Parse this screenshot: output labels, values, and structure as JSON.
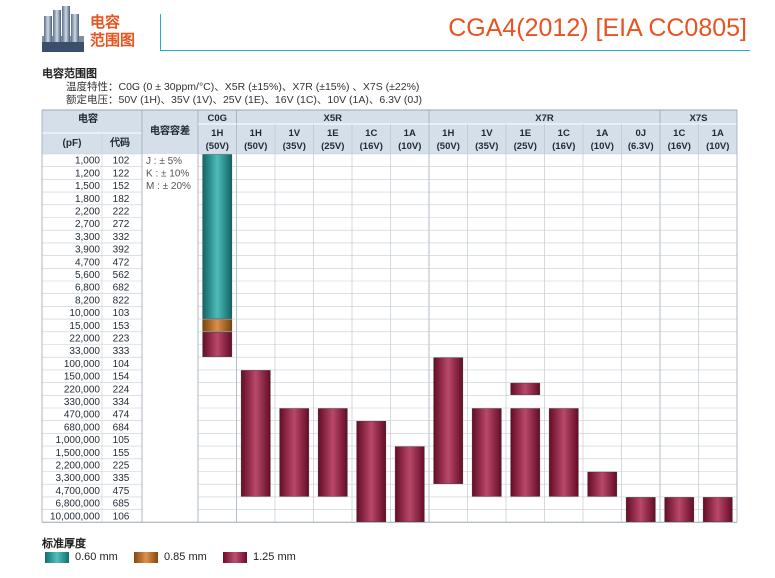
{
  "header": {
    "category_line1": "电容",
    "category_line2": "范围图",
    "main_title": "CGA4(2012) [EIA CC0805]"
  },
  "section": {
    "title": "电容范围图",
    "spec_temp": "温度特性：C0G (0 ± 30ppm/°C)、X5R (±15%)、X7R (±15%) 、X7S (±22%)",
    "spec_voltage": "额定电压：50V (1H)、35V (1V)、25V (1E)、16V (1C)、10V (1A)、6.3V (0J)"
  },
  "table": {
    "cap_header": "电容",
    "unit_header": "(pF)",
    "code_header": "代码",
    "tol_header": "电容容差",
    "tolerances": [
      "J : ± 5%",
      "K : ± 10%",
      "M : ± 20%"
    ],
    "groups": [
      {
        "name": "C0G",
        "span": 1
      },
      {
        "name": "X5R",
        "span": 5
      },
      {
        "name": "X7R",
        "span": 6
      },
      {
        "name": "X7S",
        "span": 2
      }
    ],
    "columns": [
      {
        "code": "1H",
        "voltage": "(50V)"
      },
      {
        "code": "1H",
        "voltage": "(50V)"
      },
      {
        "code": "1V",
        "voltage": "(35V)"
      },
      {
        "code": "1E",
        "voltage": "(25V)"
      },
      {
        "code": "1C",
        "voltage": "(16V)"
      },
      {
        "code": "1A",
        "voltage": "(10V)"
      },
      {
        "code": "1H",
        "voltage": "(50V)"
      },
      {
        "code": "1V",
        "voltage": "(35V)"
      },
      {
        "code": "1E",
        "voltage": "(25V)"
      },
      {
        "code": "1C",
        "voltage": "(16V)"
      },
      {
        "code": "1A",
        "voltage": "(10V)"
      },
      {
        "code": "0J",
        "voltage": "(6.3V)"
      },
      {
        "code": "1C",
        "voltage": "(16V)"
      },
      {
        "code": "1A",
        "voltage": "(10V)"
      }
    ],
    "rows": [
      {
        "value": "1,000",
        "code": "102"
      },
      {
        "value": "1,200",
        "code": "122"
      },
      {
        "value": "1,500",
        "code": "152"
      },
      {
        "value": "1,800",
        "code": "182"
      },
      {
        "value": "2,200",
        "code": "222"
      },
      {
        "value": "2,700",
        "code": "272"
      },
      {
        "value": "3,300",
        "code": "332"
      },
      {
        "value": "3,900",
        "code": "392"
      },
      {
        "value": "4,700",
        "code": "472"
      },
      {
        "value": "5,600",
        "code": "562"
      },
      {
        "value": "6,800",
        "code": "682"
      },
      {
        "value": "8,200",
        "code": "822"
      },
      {
        "value": "10,000",
        "code": "103"
      },
      {
        "value": "15,000",
        "code": "153"
      },
      {
        "value": "22,000",
        "code": "223"
      },
      {
        "value": "33,000",
        "code": "333"
      },
      {
        "value": "100,000",
        "code": "104"
      },
      {
        "value": "150,000",
        "code": "154"
      },
      {
        "value": "220,000",
        "code": "224"
      },
      {
        "value": "330,000",
        "code": "334"
      },
      {
        "value": "470,000",
        "code": "474"
      },
      {
        "value": "680,000",
        "code": "684"
      },
      {
        "value": "1,000,000",
        "code": "105"
      },
      {
        "value": "1,500,000",
        "code": "155"
      },
      {
        "value": "2,200,000",
        "code": "225"
      },
      {
        "value": "3,300,000",
        "code": "335"
      },
      {
        "value": "4,700,000",
        "code": "475"
      },
      {
        "value": "6,800,000",
        "code": "685"
      },
      {
        "value": "10,000,000",
        "code": "106"
      }
    ],
    "bars": [
      {
        "col": 0,
        "from": 0,
        "to": 12,
        "thickness": "0.60 mm"
      },
      {
        "col": 0,
        "from": 13,
        "to": 13,
        "thickness": "0.85 mm"
      },
      {
        "col": 0,
        "from": 14,
        "to": 15,
        "thickness": "1.25 mm"
      },
      {
        "col": 1,
        "from": 17,
        "to": 26,
        "thickness": "1.25 mm"
      },
      {
        "col": 2,
        "from": 20,
        "to": 26,
        "thickness": "1.25 mm"
      },
      {
        "col": 3,
        "from": 20,
        "to": 26,
        "thickness": "1.25 mm"
      },
      {
        "col": 4,
        "from": 21,
        "to": 28,
        "thickness": "1.25 mm"
      },
      {
        "col": 5,
        "from": 23,
        "to": 28,
        "thickness": "1.25 mm"
      },
      {
        "col": 6,
        "from": 16,
        "to": 25,
        "thickness": "1.25 mm"
      },
      {
        "col": 7,
        "from": 20,
        "to": 26,
        "thickness": "1.25 mm"
      },
      {
        "col": 8,
        "from": 18,
        "to": 18,
        "thickness": "1.25 mm"
      },
      {
        "col": 8,
        "from": 20,
        "to": 26,
        "thickness": "1.25 mm"
      },
      {
        "col": 9,
        "from": 20,
        "to": 26,
        "thickness": "1.25 mm"
      },
      {
        "col": 10,
        "from": 25,
        "to": 26,
        "thickness": "1.25 mm"
      },
      {
        "col": 11,
        "from": 27,
        "to": 28,
        "thickness": "1.25 mm"
      },
      {
        "col": 12,
        "from": 27,
        "to": 28,
        "thickness": "1.25 mm"
      },
      {
        "col": 13,
        "from": 27,
        "to": 28,
        "thickness": "1.25 mm"
      }
    ]
  },
  "legend": {
    "title": "标准厚度",
    "items": [
      {
        "label": "0.60 mm",
        "color": "#1aa9a6"
      },
      {
        "label": "0.85 mm",
        "color": "#d06f12"
      },
      {
        "label": "1.25 mm",
        "color": "#a5143f"
      }
    ]
  },
  "colors": {
    "accent": "#e8531f",
    "rule": "#2aa8d6",
    "header_bg": "#d5dfe9",
    "grid_line": "#9aa8b6",
    "teal": "#1aa9a6",
    "orange": "#d06f12",
    "crimson": "#a5143f"
  }
}
